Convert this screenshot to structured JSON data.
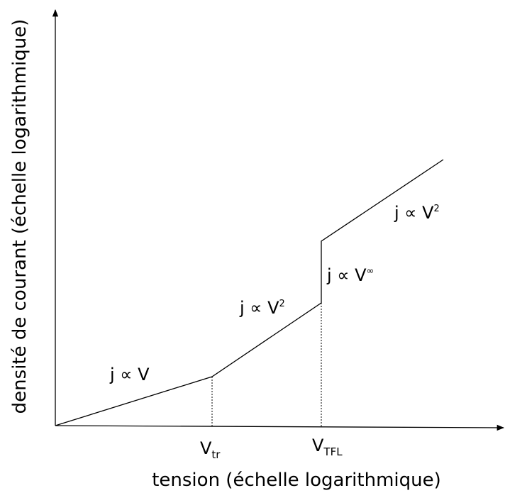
{
  "x_axis_label": "tension (échelle logarithmique)",
  "y_axis_label": "densité de courant (échelle logarithmique)",
  "regions": [
    {
      "base": "j ∝ V"
    },
    {
      "base": "j ∝ V",
      "sup": "2"
    },
    {
      "base": "j ∝ V",
      "sup": "∞"
    },
    {
      "base": "j ∝ V",
      "sup": "2"
    }
  ],
  "voltage_marks": [
    {
      "base": "V",
      "sub": "tr"
    },
    {
      "base": "V",
      "sub": "TFL"
    }
  ]
}
